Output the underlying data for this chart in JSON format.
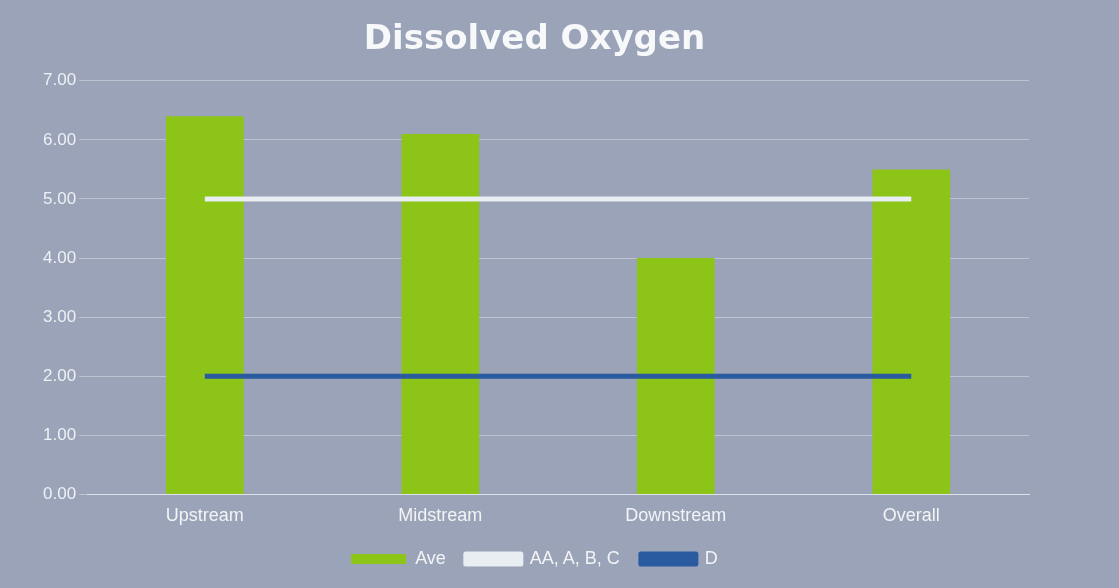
{
  "chart_data": {
    "type": "bar",
    "title": "Dissolved Oxygen",
    "categories": [
      "Upstream",
      "Midstream",
      "Downstream",
      "Overall"
    ],
    "series": [
      {
        "name": "Ave",
        "color": "#8cc418",
        "values": [
          6.4,
          6.1,
          4.0,
          5.5
        ]
      },
      {
        "name": "AA, A, B, C",
        "type": "line",
        "color": "#e8eef2",
        "values": [
          5,
          5,
          5,
          5
        ]
      },
      {
        "name": "D",
        "type": "line",
        "color": "#2a5aa0",
        "values": [
          2,
          2,
          2,
          2
        ]
      }
    ],
    "ylim": [
      0,
      7
    ],
    "yticks": [
      {
        "value": 0,
        "label": "0.00"
      },
      {
        "value": 1,
        "label": "1.00"
      },
      {
        "value": 2,
        "label": "2.00"
      },
      {
        "value": 3,
        "label": "3.00"
      },
      {
        "value": 4,
        "label": "4.00"
      },
      {
        "value": 5,
        "label": "5.00"
      },
      {
        "value": 6,
        "label": "6.00"
      },
      {
        "value": 7,
        "label": "7.00"
      }
    ],
    "grid": "y",
    "legend": "bottom",
    "marker": "none",
    "line_style": "solid"
  }
}
